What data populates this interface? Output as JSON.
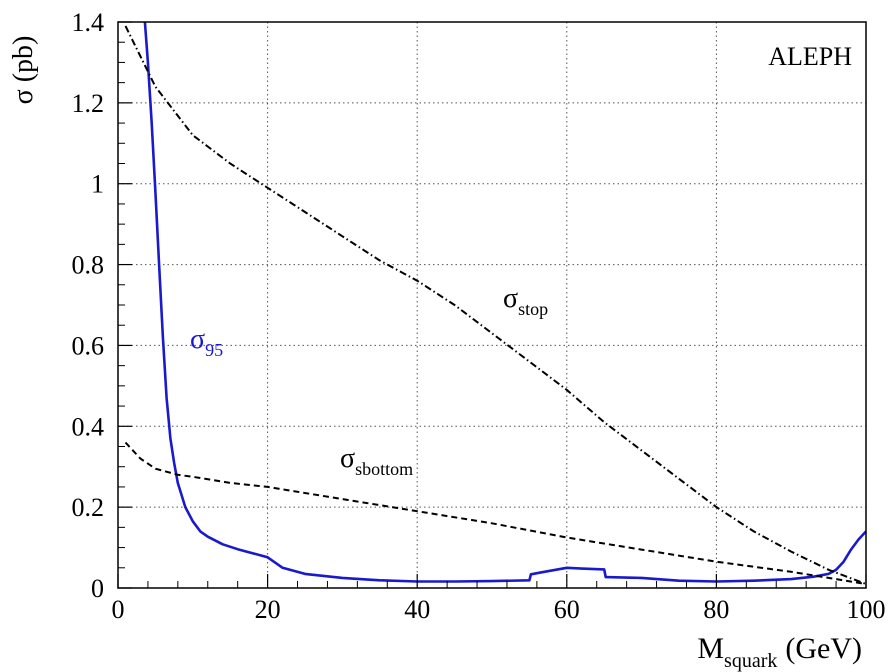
{
  "chart_data": {
    "type": "line",
    "experiment_label": "ALEPH",
    "ylabel": {
      "symbol": "σ",
      "unit": "(pb)"
    },
    "xlabel": {
      "main": "M",
      "sub": "squark",
      "unit": "(GeV)"
    },
    "xlim": [
      0,
      100
    ],
    "ylim": [
      0,
      1.4
    ],
    "x_ticks": [
      0,
      20,
      40,
      60,
      80,
      100
    ],
    "x_tick_labels": [
      "0",
      "20",
      "40",
      "60",
      "80",
      "100"
    ],
    "y_ticks": [
      0,
      0.2,
      0.4,
      0.6,
      0.8,
      1,
      1.2,
      1.4
    ],
    "y_tick_labels": [
      "0",
      "0.2",
      "0.4",
      "0.6",
      "0.8",
      "1",
      "1.2",
      "1.4"
    ],
    "grid": true,
    "series": [
      {
        "name": "σ95",
        "color": "#1a1acc",
        "style": "solid",
        "annotation": {
          "main": "σ",
          "sub": "95"
        },
        "x": [
          3.6,
          4.0,
          4.5,
          5.0,
          5.5,
          6.0,
          6.5,
          7.0,
          7.5,
          8.0,
          9.0,
          10.0,
          11.0,
          12.0,
          14.0,
          16.0,
          18.0,
          20.0,
          22.0,
          25.0,
          30.0,
          35.0,
          40.0,
          45.0,
          50.0,
          55.0,
          55.2,
          57.0,
          60.0,
          62.0,
          65.0,
          65.2,
          70.0,
          75.0,
          80.0,
          85.0,
          90.0,
          93.0,
          95.0,
          96.0,
          97.0,
          98.0,
          99.0,
          100.0
        ],
        "y": [
          1.4,
          1.3,
          1.15,
          0.98,
          0.8,
          0.62,
          0.47,
          0.37,
          0.31,
          0.26,
          0.2,
          0.165,
          0.14,
          0.127,
          0.108,
          0.096,
          0.086,
          0.076,
          0.05,
          0.035,
          0.025,
          0.019,
          0.016,
          0.016,
          0.017,
          0.019,
          0.034,
          0.04,
          0.05,
          0.048,
          0.046,
          0.027,
          0.025,
          0.018,
          0.016,
          0.018,
          0.022,
          0.028,
          0.035,
          0.045,
          0.065,
          0.095,
          0.12,
          0.14
        ]
      },
      {
        "name": "σstop",
        "color": "#000000",
        "style": "dashdot",
        "annotation": {
          "main": "σ",
          "sub": "stop"
        },
        "x": [
          1,
          5,
          10,
          15,
          20,
          25,
          30,
          35,
          40,
          45,
          50,
          55,
          60,
          65,
          70,
          75,
          80,
          85,
          90,
          95,
          100
        ],
        "y": [
          1.39,
          1.24,
          1.12,
          1.05,
          0.99,
          0.93,
          0.87,
          0.81,
          0.76,
          0.7,
          0.63,
          0.56,
          0.49,
          0.41,
          0.34,
          0.27,
          0.2,
          0.14,
          0.09,
          0.045,
          0.01
        ]
      },
      {
        "name": "σsbottom",
        "color": "#000000",
        "style": "dashed",
        "annotation": {
          "main": "σ",
          "sub": "sbottom"
        },
        "x": [
          1,
          3,
          5,
          8,
          10,
          15,
          20,
          30,
          40,
          50,
          60,
          70,
          80,
          90,
          100
        ],
        "y": [
          0.36,
          0.32,
          0.295,
          0.28,
          0.275,
          0.26,
          0.25,
          0.22,
          0.19,
          0.16,
          0.125,
          0.095,
          0.065,
          0.04,
          0.01
        ]
      }
    ]
  }
}
